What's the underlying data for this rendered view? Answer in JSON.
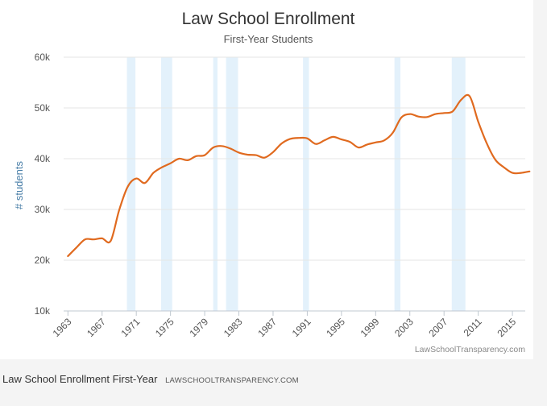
{
  "chart_data": {
    "type": "line",
    "title": "Law School Enrollment",
    "subtitle": "First-Year Students",
    "ylabel": "# students",
    "xlabel": "",
    "xlim": [
      1962.5,
      2016.5
    ],
    "ylim": [
      10000,
      60000
    ],
    "x_ticks": [
      1963,
      1967,
      1971,
      1975,
      1979,
      1983,
      1987,
      1991,
      1995,
      1999,
      2003,
      2007,
      2011,
      2015
    ],
    "y_ticks": [
      {
        "value": 10000,
        "label": "10k"
      },
      {
        "value": 20000,
        "label": "20k"
      },
      {
        "value": 30000,
        "label": "30k"
      },
      {
        "value": 40000,
        "label": "40k"
      },
      {
        "value": 50000,
        "label": "50k"
      },
      {
        "value": 60000,
        "label": "60k"
      }
    ],
    "grid": true,
    "legend": "none",
    "line_color": "#e06a1f",
    "band_color": "#e3f1fb",
    "recession_bands": [
      [
        1969.9,
        1970.9
      ],
      [
        1973.9,
        1975.2
      ],
      [
        1980.0,
        1980.5
      ],
      [
        1981.5,
        1982.9
      ],
      [
        1990.5,
        1991.2
      ],
      [
        2001.2,
        2001.9
      ],
      [
        2007.9,
        2009.5
      ]
    ],
    "series": [
      {
        "x": [
          1963,
          1964,
          1965,
          1966,
          1967,
          1968,
          1969,
          1970,
          1971,
          1972,
          1973,
          1974,
          1975,
          1976,
          1977,
          1978,
          1979,
          1980,
          1981,
          1982,
          1983,
          1984,
          1985,
          1986,
          1987,
          1988,
          1989,
          1990,
          1991,
          1992,
          1993,
          1994,
          1995,
          1996,
          1997,
          1998,
          1999,
          2000,
          2001,
          2002,
          2003,
          2004,
          2005,
          2006,
          2007,
          2008,
          2009,
          2010,
          2011,
          2012,
          2013,
          2014,
          2015,
          2016,
          2017
        ],
        "y": [
          20800,
          22500,
          24100,
          24100,
          24300,
          23800,
          29900,
          34500,
          36100,
          35200,
          37200,
          38300,
          39100,
          40000,
          39700,
          40500,
          40700,
          42200,
          42500,
          42000,
          41200,
          40800,
          40700,
          40200,
          41300,
          43000,
          43900,
          44100,
          44000,
          42900,
          43600,
          44300,
          43800,
          43300,
          42200,
          42800,
          43200,
          43600,
          45100,
          48100,
          48800,
          48300,
          48200,
          48800,
          49000,
          49300,
          51600,
          52300,
          47300,
          43000,
          39800,
          38300,
          37200,
          37200,
          37500
        ]
      }
    ],
    "credit": "LawSchoolTransparency.com"
  },
  "caption": {
    "text": "Law School Enrollment First-Year",
    "source": "LAWSCHOOLTRANSPARENCY.COM"
  }
}
